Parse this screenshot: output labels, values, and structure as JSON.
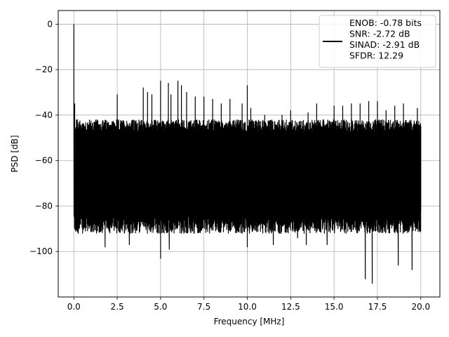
{
  "chart_data": {
    "type": "line",
    "title": "",
    "xlabel": "Frequency [MHz]",
    "ylabel": "PSD [dB]",
    "xlim": [
      -0.9,
      21.1
    ],
    "ylim": [
      -120,
      6
    ],
    "xticks": [
      0.0,
      2.5,
      5.0,
      7.5,
      10.0,
      12.5,
      15.0,
      17.5,
      20.0
    ],
    "xtick_labels": [
      "0.0",
      "2.5",
      "5.0",
      "7.5",
      "10.0",
      "12.5",
      "15.0",
      "17.5",
      "20.0"
    ],
    "yticks": [
      0,
      -20,
      -40,
      -60,
      -80,
      -100
    ],
    "ytick_labels": [
      "0",
      "−20",
      "−40",
      "−60",
      "−80",
      "−100"
    ],
    "grid": true,
    "legend_position": "upper right",
    "legend_entries": [
      "ENOB: -0.78 bits",
      "SNR: -2.72 dB",
      "SINAD: -2.91 dB",
      "SFDR: 12.29"
    ],
    "series": [
      {
        "color": "#000000",
        "band": {
          "x": [
            0.0,
            20.0
          ],
          "upper_typical": -45,
          "lower_typical": -88
        },
        "points": [
          [
            0.0,
            0
          ],
          [
            0.02,
            -72
          ],
          [
            0.05,
            -35
          ],
          [
            0.1,
            -91
          ],
          [
            0.2,
            -42
          ],
          [
            1.0,
            -89
          ],
          [
            1.8,
            -98
          ],
          [
            2.5,
            -31
          ],
          [
            2.6,
            -91
          ],
          [
            3.2,
            -97
          ],
          [
            4.0,
            -28
          ],
          [
            4.25,
            -30
          ],
          [
            4.5,
            -31
          ],
          [
            5.0,
            -25
          ],
          [
            5.0,
            -103
          ],
          [
            5.45,
            -26
          ],
          [
            5.5,
            -99
          ],
          [
            5.6,
            -31
          ],
          [
            6.0,
            -25
          ],
          [
            6.2,
            -27
          ],
          [
            6.5,
            -30
          ],
          [
            7.0,
            -32
          ],
          [
            7.5,
            -32
          ],
          [
            8.0,
            -33
          ],
          [
            8.5,
            -35
          ],
          [
            9.0,
            -33
          ],
          [
            9.7,
            -35
          ],
          [
            10.0,
            -27
          ],
          [
            10.0,
            -98
          ],
          [
            10.2,
            -37
          ],
          [
            11.0,
            -40
          ],
          [
            11.5,
            -97
          ],
          [
            12.0,
            -40
          ],
          [
            12.5,
            -38
          ],
          [
            12.9,
            -94
          ],
          [
            13.4,
            -97
          ],
          [
            13.5,
            -39
          ],
          [
            14.0,
            -35
          ],
          [
            14.6,
            -97
          ],
          [
            15.0,
            -36
          ],
          [
            15.5,
            -36
          ],
          [
            16.0,
            -35
          ],
          [
            16.5,
            -35
          ],
          [
            16.8,
            -112
          ],
          [
            17.2,
            -114
          ],
          [
            17.0,
            -34
          ],
          [
            17.5,
            -34
          ],
          [
            18.0,
            -38
          ],
          [
            18.5,
            -36
          ],
          [
            18.7,
            -106
          ],
          [
            19.0,
            -35
          ],
          [
            19.5,
            -108
          ],
          [
            19.8,
            -37
          ],
          [
            20.0,
            -45
          ],
          [
            20.0,
            -82
          ]
        ]
      }
    ]
  }
}
